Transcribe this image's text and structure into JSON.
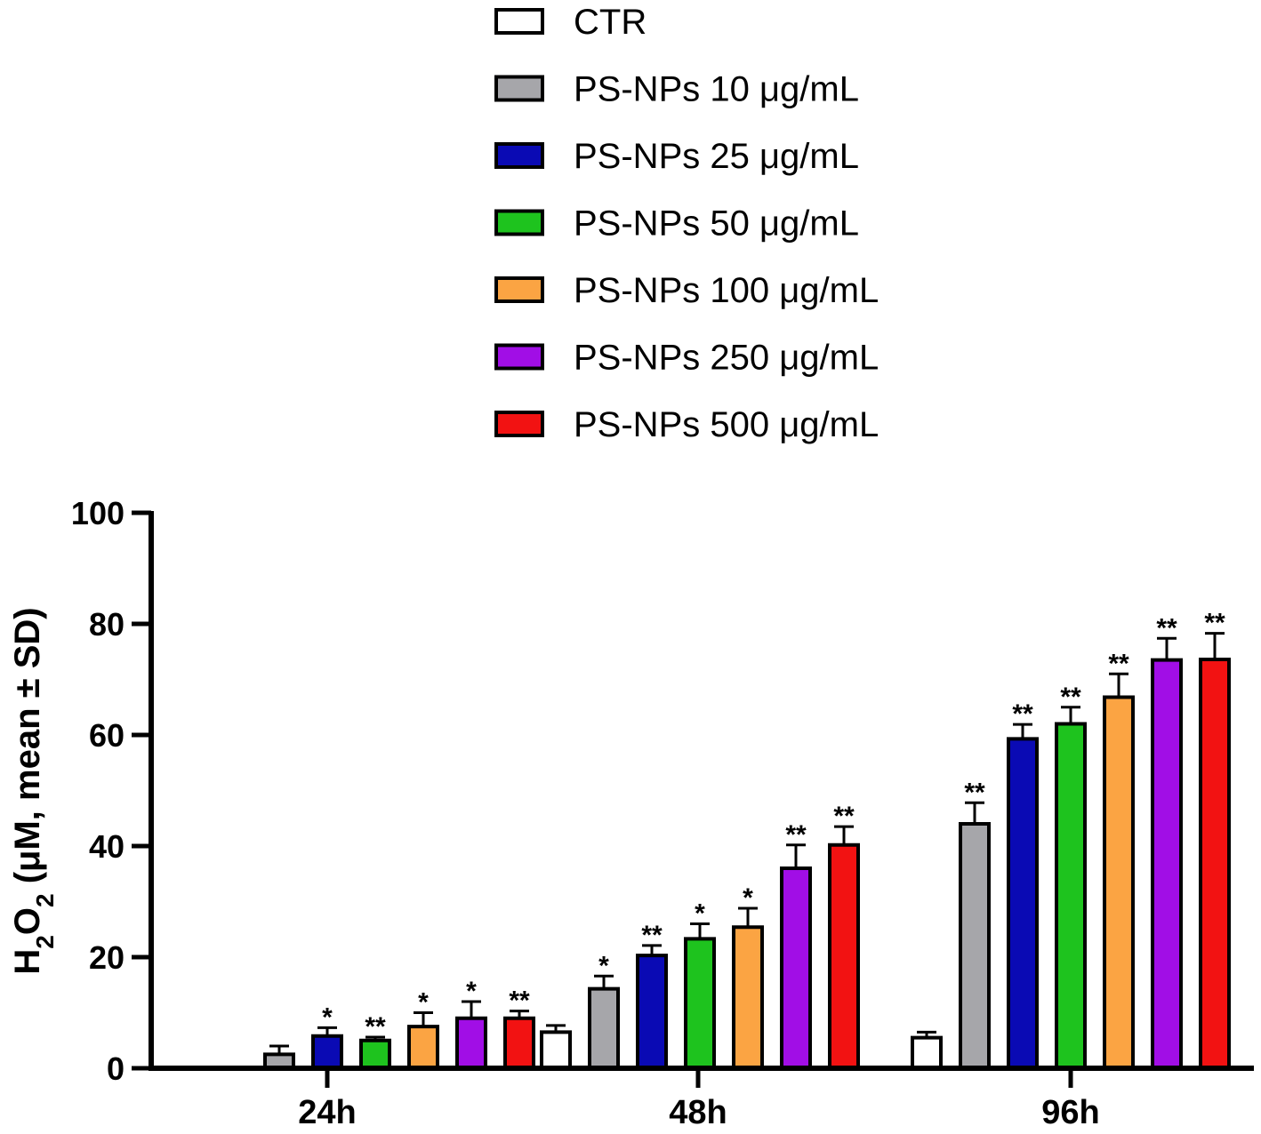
{
  "chart_data": {
    "type": "bar",
    "title": "",
    "xlabel": "",
    "ylabel": "H2O2 (µM, mean ± SD)",
    "ylabel_parts": {
      "a": "H",
      "sub1": "2",
      "b": "O",
      "sub2": "2",
      "c": " (μM, mean ± SD)"
    },
    "ylim": [
      0,
      100
    ],
    "yticks": [
      0,
      20,
      40,
      60,
      80,
      100
    ],
    "legend_position": "top-center",
    "categories": [
      "24h",
      "48h",
      "96h"
    ],
    "series": [
      {
        "name": "CTR",
        "color": "#ffffff",
        "values": [
          0,
          6.5,
          5.5
        ],
        "errors": [
          0,
          1.2,
          1.0
        ],
        "sig": [
          "",
          "",
          ""
        ]
      },
      {
        "name": "PS-NPs 10 μg/mL",
        "color": "#a6a6aa",
        "values": [
          2.5,
          14.3,
          44.0
        ],
        "errors": [
          1.5,
          2.3,
          3.8
        ],
        "sig": [
          "",
          "*",
          "**"
        ]
      },
      {
        "name": "PS-NPs 25 μg/mL",
        "color": "#0a0ab4",
        "values": [
          5.8,
          20.3,
          59.3
        ],
        "errors": [
          1.5,
          1.8,
          2.6
        ],
        "sig": [
          "*",
          "**",
          "**"
        ]
      },
      {
        "name": "PS-NPs 50 μg/mL",
        "color": "#1ec31e",
        "values": [
          5.0,
          23.3,
          62.0
        ],
        "errors": [
          0.6,
          2.7,
          3.0
        ],
        "sig": [
          "**",
          "*",
          "**"
        ]
      },
      {
        "name": "PS-NPs 100 μg/mL",
        "color": "#fba443",
        "values": [
          7.5,
          25.4,
          66.8
        ],
        "errors": [
          2.5,
          3.4,
          4.2
        ],
        "sig": [
          "*",
          "*",
          "**"
        ]
      },
      {
        "name": "PS-NPs 250 μg/mL",
        "color": "#a10ee6",
        "values": [
          9.0,
          36.0,
          73.5
        ],
        "errors": [
          3.0,
          4.2,
          3.9
        ],
        "sig": [
          "*",
          "**",
          "**"
        ]
      },
      {
        "name": "PS-NPs 500 μg/mL",
        "color": "#f21212",
        "values": [
          9.0,
          40.2,
          73.6
        ],
        "errors": [
          1.3,
          3.3,
          4.7
        ],
        "sig": [
          "**",
          "**",
          "**"
        ]
      }
    ]
  }
}
